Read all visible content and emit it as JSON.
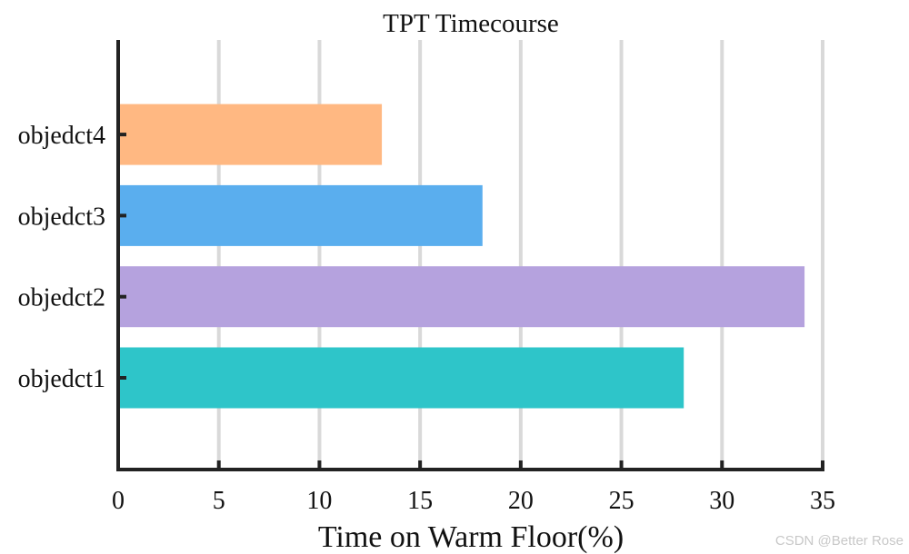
{
  "chart_data": {
    "type": "bar",
    "orientation": "horizontal",
    "title": "TPT Timecourse",
    "xlabel": "Time on Warm Floor(%)",
    "ylabel": "",
    "xlim": [
      0,
      35
    ],
    "xticks": [
      0,
      5,
      10,
      15,
      20,
      25,
      30,
      35
    ],
    "grid": "vertical",
    "categories": [
      "objedct1",
      "objedct2",
      "objedct3",
      "objedct4"
    ],
    "values": [
      28.1,
      34.1,
      18.1,
      13.1
    ],
    "colors": [
      "#2ec5c9",
      "#b5a2de",
      "#5aaeee",
      "#ffb882"
    ]
  },
  "watermark": "CSDN @Better Rose"
}
